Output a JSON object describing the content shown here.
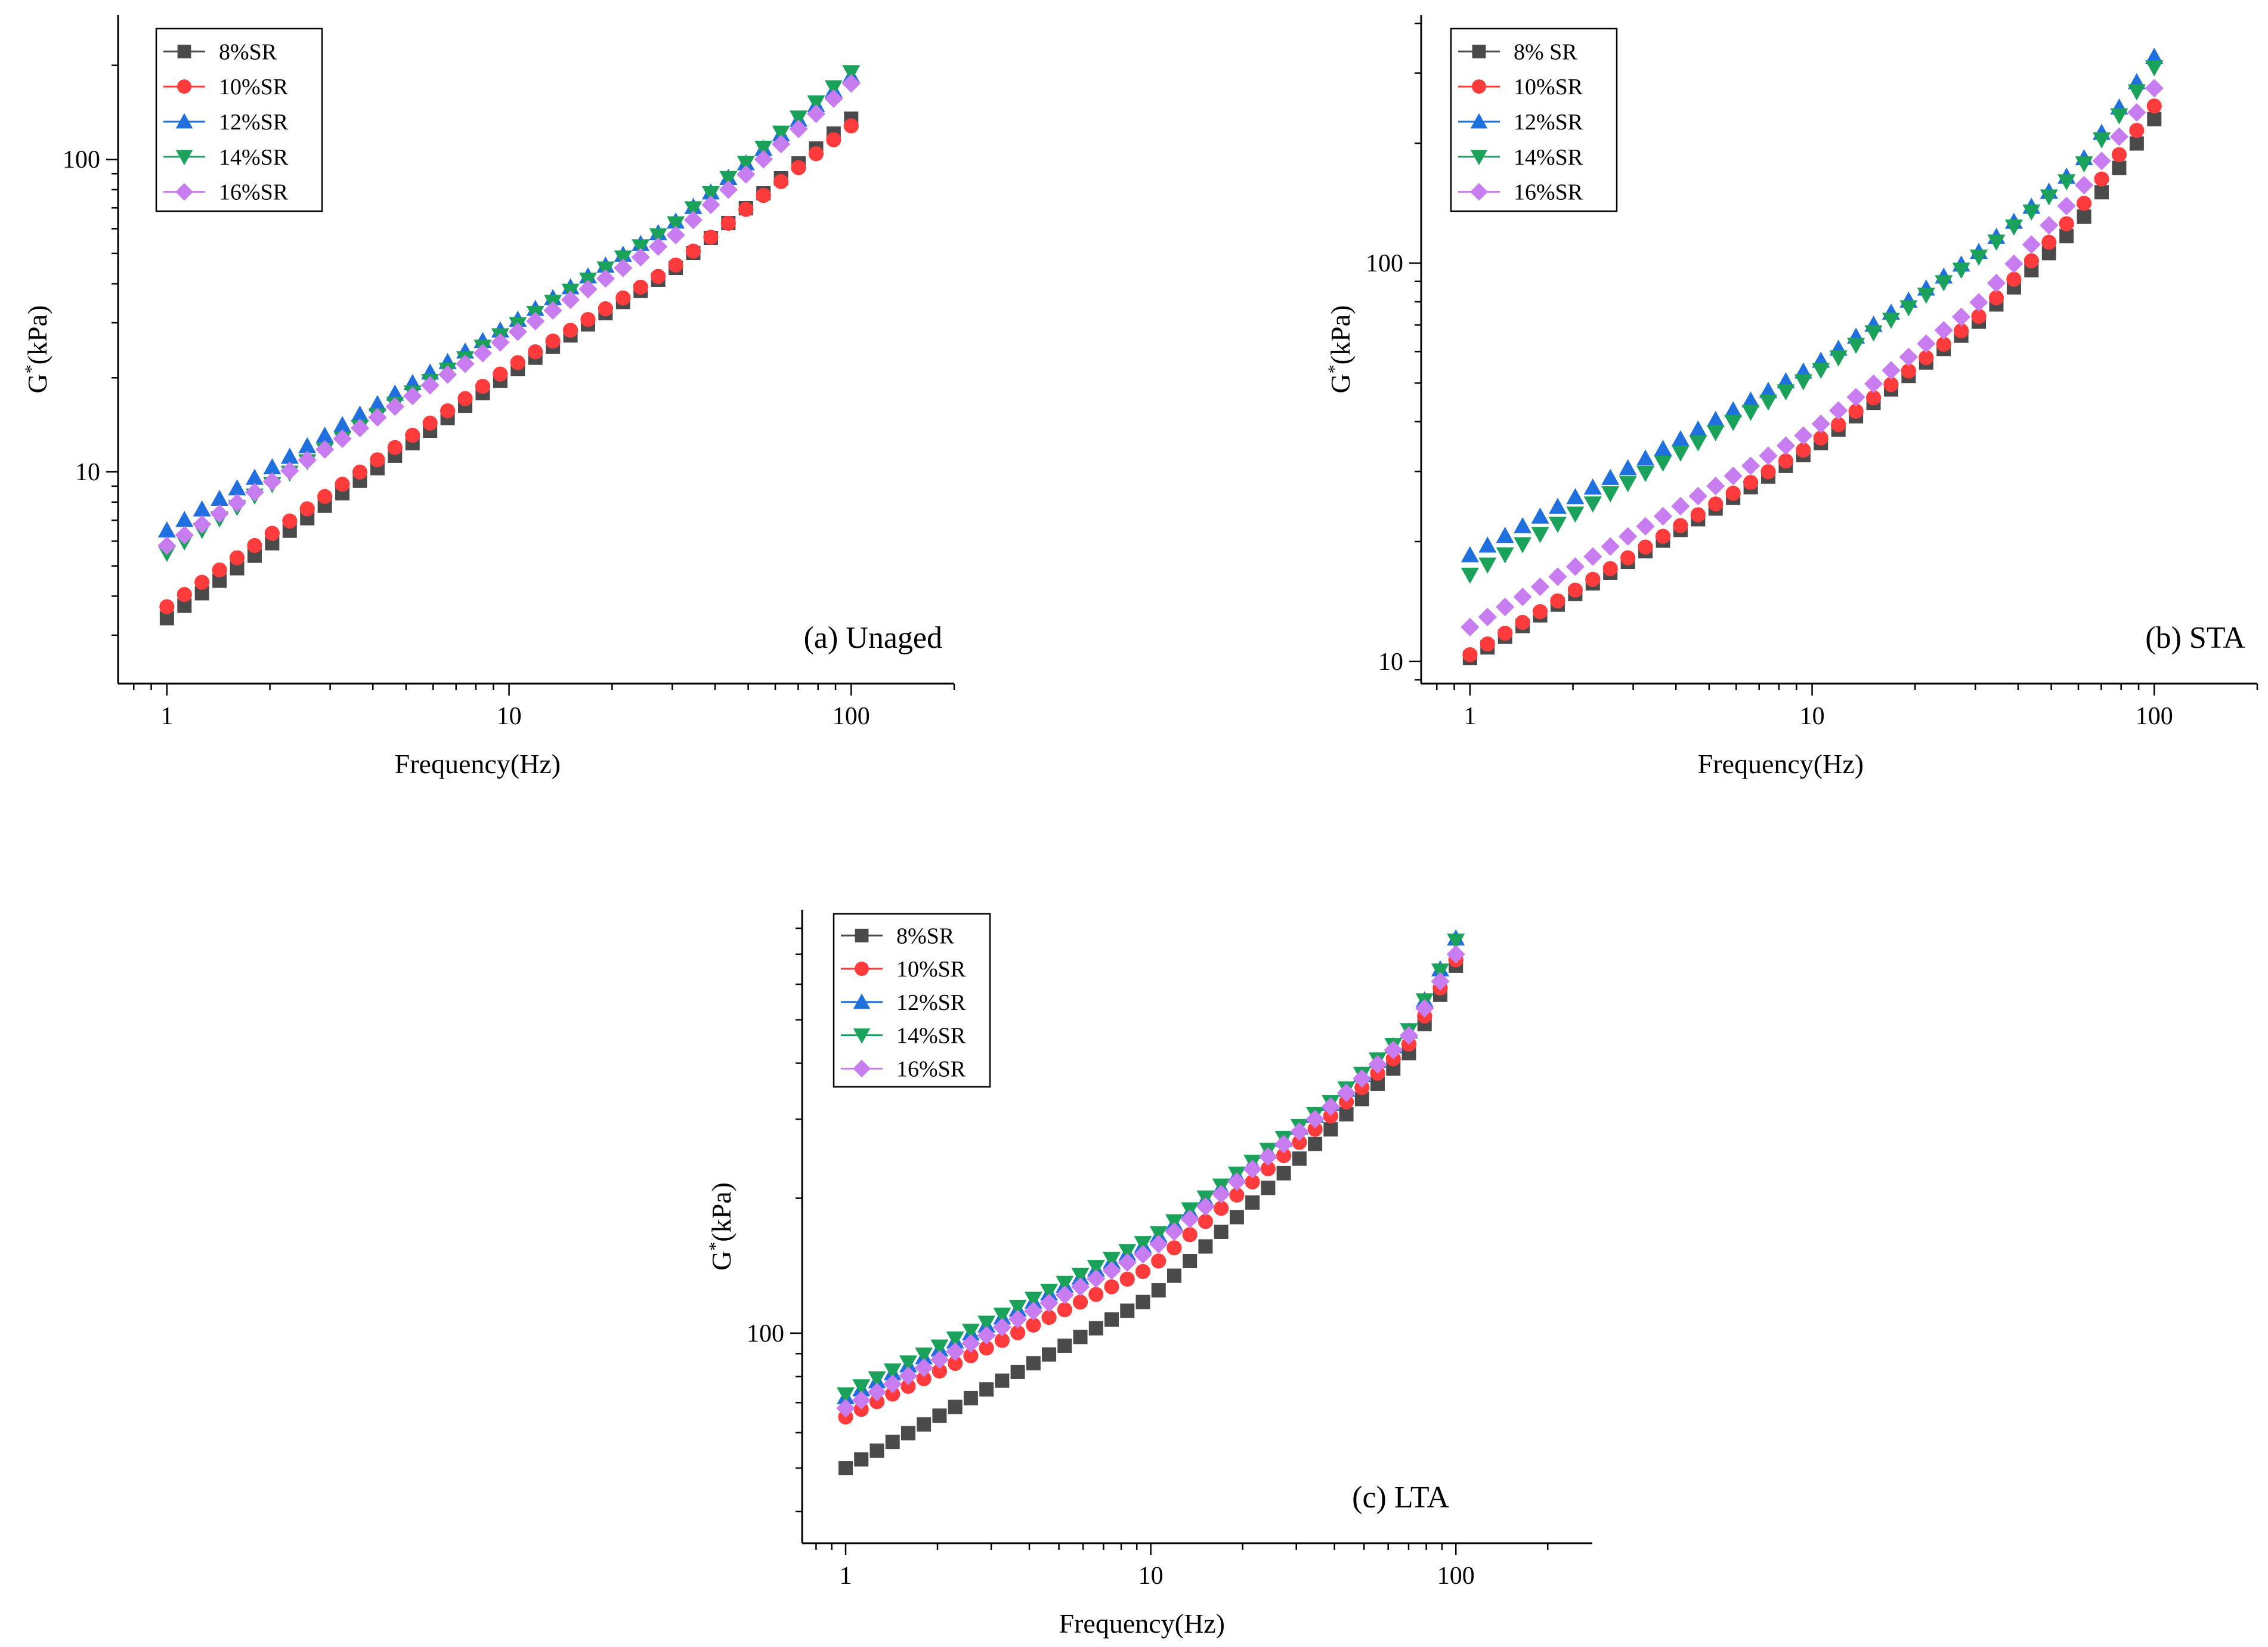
{
  "series_styles": [
    {
      "marker": "square",
      "color": "#4a4a4a"
    },
    {
      "marker": "circle",
      "color": "#ff3b3b"
    },
    {
      "marker": "triangle-up",
      "color": "#1f6fde"
    },
    {
      "marker": "triangle-down",
      "color": "#1aa15a"
    },
    {
      "marker": "diamond",
      "color": "#c77cf0"
    }
  ],
  "chart_data": [
    {
      "type": "scatter",
      "panel_label": "(a) Unaged",
      "title": "",
      "xlabel": "Frequency(Hz)",
      "ylabel_main": "G",
      "ylabel_sup": "*",
      "ylabel_unit": "(kPa)",
      "xscale": "log",
      "yscale": "log",
      "xlim": [
        0.72,
        200
      ],
      "ylim": [
        2.1,
        290
      ],
      "x_ticks": [
        1,
        10,
        100
      ],
      "x_tick_labels": [
        "1",
        "10",
        "100"
      ],
      "y_ticks": [
        10,
        100
      ],
      "y_tick_labels": [
        "10",
        "100"
      ],
      "legend_position": "top-left",
      "x_range": [
        1,
        100
      ],
      "points_per_series": 40,
      "series": [
        {
          "name": "8%SR",
          "anchors": [
            [
              1,
              3.4
            ],
            [
              10,
              20.5
            ],
            [
              30,
              44
            ],
            [
              100,
              135
            ]
          ]
        },
        {
          "name": "10%SR",
          "anchors": [
            [
              1,
              3.7
            ],
            [
              10,
              21.5
            ],
            [
              30,
              45
            ],
            [
              100,
              128
            ]
          ]
        },
        {
          "name": "12%SR",
          "anchors": [
            [
              1,
              6.5
            ],
            [
              10,
              29.5
            ],
            [
              30,
              62
            ],
            [
              100,
              185
            ]
          ]
        },
        {
          "name": "14%SR",
          "anchors": [
            [
              1,
              5.5
            ],
            [
              10,
              28.5
            ],
            [
              30,
              61
            ],
            [
              100,
              190
            ]
          ]
        },
        {
          "name": "16%SR",
          "anchors": [
            [
              1,
              5.8
            ],
            [
              10,
              27
            ],
            [
              30,
              56
            ],
            [
              100,
              175
            ]
          ]
        }
      ]
    },
    {
      "type": "scatter",
      "panel_label": "(b) STA",
      "title": "",
      "xlabel": "Frequency(Hz)",
      "ylabel_main": "G",
      "ylabel_sup": "*",
      "ylabel_unit": "(kPa)",
      "xscale": "log",
      "yscale": "log",
      "xlim": [
        0.72,
        200
      ],
      "ylim": [
        8.8,
        420
      ],
      "x_ticks": [
        1,
        10,
        100
      ],
      "x_tick_labels": [
        "1",
        "10",
        "100"
      ],
      "y_ticks": [
        10,
        100
      ],
      "y_tick_labels": [
        "10",
        "100"
      ],
      "legend_position": "top-left",
      "x_range": [
        1,
        100
      ],
      "points_per_series": 40,
      "series": [
        {
          "name": "8% SR",
          "anchors": [
            [
              1,
              10.2
            ],
            [
              10,
              34
            ],
            [
              30,
              70
            ],
            [
              60,
              125
            ],
            [
              100,
              230
            ]
          ]
        },
        {
          "name": "10%SR",
          "anchors": [
            [
              1,
              10.4
            ],
            [
              10,
              35
            ],
            [
              30,
              72
            ],
            [
              60,
              135
            ],
            [
              100,
              248
            ]
          ]
        },
        {
          "name": "12%SR",
          "anchors": [
            [
              1,
              18.5
            ],
            [
              10,
              55
            ],
            [
              30,
              105
            ],
            [
              60,
              175
            ],
            [
              100,
              330
            ]
          ]
        },
        {
          "name": "14%SR",
          "anchors": [
            [
              1,
              16.5
            ],
            [
              10,
              52
            ],
            [
              30,
              102
            ],
            [
              60,
              170
            ],
            [
              100,
              310
            ]
          ]
        },
        {
          "name": "16%SR",
          "anchors": [
            [
              1,
              12.2
            ],
            [
              10,
              38
            ],
            [
              30,
              78
            ],
            [
              60,
              150
            ],
            [
              100,
              275
            ]
          ]
        }
      ]
    },
    {
      "type": "scatter",
      "panel_label": "(c) LTA",
      "title": "",
      "xlabel": "Frequency(Hz)",
      "ylabel_main": "G",
      "ylabel_sup": "*",
      "ylabel_unit": "(kPa)",
      "xscale": "log",
      "yscale": "log",
      "xlim": [
        0.72,
        280
      ],
      "ylim": [
        34,
        880
      ],
      "x_ticks": [
        1,
        10,
        100
      ],
      "x_tick_labels": [
        "1",
        "10",
        "100"
      ],
      "y_ticks": [
        100
      ],
      "y_tick_labels": [
        "100"
      ],
      "legend_position": "top-left",
      "x_range": [
        1,
        100
      ],
      "points_per_series": 40,
      "series": [
        {
          "name": "8%SR",
          "anchors": [
            [
              1,
              50
            ],
            [
              10,
              120
            ],
            [
              40,
              290
            ],
            [
              70,
              420
            ],
            [
              100,
              660
            ]
          ]
        },
        {
          "name": "10%SR",
          "anchors": [
            [
              1,
              65
            ],
            [
              10,
              140
            ],
            [
              40,
              310
            ],
            [
              70,
              440
            ],
            [
              100,
              680
            ]
          ]
        },
        {
          "name": "12%SR",
          "anchors": [
            [
              1,
              72
            ],
            [
              10,
              160
            ],
            [
              40,
              330
            ],
            [
              70,
              470
            ],
            [
              100,
              760
            ]
          ]
        },
        {
          "name": "14%SR",
          "anchors": [
            [
              1,
              73
            ],
            [
              10,
              162
            ],
            [
              40,
              332
            ],
            [
              70,
              472
            ],
            [
              100,
              750
            ]
          ]
        },
        {
          "name": "16%SR",
          "anchors": [
            [
              1,
              68
            ],
            [
              10,
              153
            ],
            [
              40,
              325
            ],
            [
              70,
              460
            ],
            [
              100,
              700
            ]
          ]
        }
      ]
    }
  ]
}
